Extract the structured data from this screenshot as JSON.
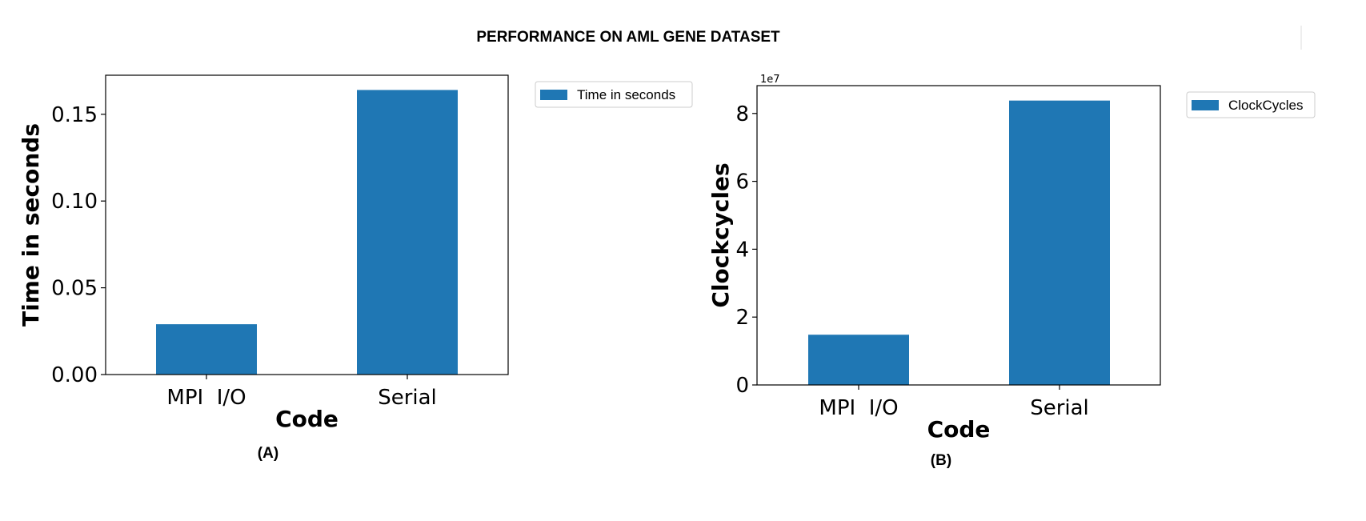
{
  "figure": {
    "title": "PERFORMANCE ON AML GENE DATASET"
  },
  "chart_data": [
    {
      "type": "bar",
      "panel_label": "(A)",
      "categories": [
        "MPI  I/O",
        "Serial"
      ],
      "series": [
        {
          "name": "Time in seconds",
          "values": [
            0.029,
            0.164
          ]
        }
      ],
      "xlabel": "Code",
      "ylabel": "Time in seconds",
      "ylim": [
        0,
        0.1725
      ],
      "yticks": [
        0.0,
        0.05,
        0.1,
        0.15
      ],
      "ytick_labels": [
        "0.00",
        "0.05",
        "0.10",
        "0.15"
      ],
      "offset_text": "",
      "color": "#1f77b4",
      "legend_position": "outside-top-right",
      "grid": false
    },
    {
      "type": "bar",
      "panel_label": "(B)",
      "categories": [
        "MPI  I/O",
        "Serial"
      ],
      "series": [
        {
          "name": "ClockCycles",
          "values": [
            14800000,
            83800000
          ]
        }
      ],
      "xlabel": "Code",
      "ylabel": "Clockcycles",
      "ylim": [
        0,
        88200000
      ],
      "yticks": [
        0,
        20000000,
        40000000,
        60000000,
        80000000
      ],
      "ytick_labels": [
        "0",
        "2",
        "4",
        "6",
        "8"
      ],
      "offset_text": "1e7",
      "color": "#1f77b4",
      "legend_position": "outside-top-right",
      "grid": false
    }
  ]
}
